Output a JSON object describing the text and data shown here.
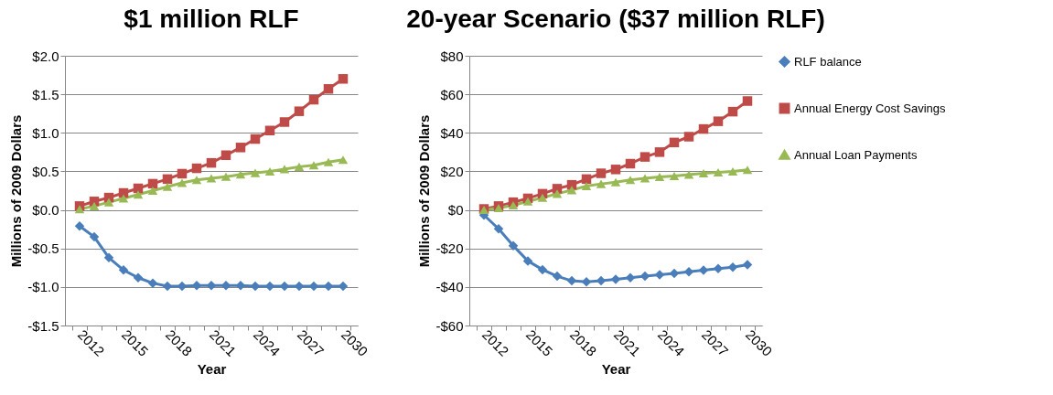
{
  "chart_data": [
    {
      "type": "line",
      "title": "$1 million RLF",
      "xlabel": "Year",
      "ylabel": "Millions of 2009 Dollars",
      "categories": [
        "2012",
        null,
        null,
        "2015",
        null,
        null,
        "2018",
        null,
        null,
        "2021",
        null,
        null,
        "2024",
        null,
        null,
        "2027",
        null,
        null,
        "2030"
      ],
      "ylim": [
        -1.5,
        2.0
      ],
      "yticks": [
        {
          "value": -1.5,
          "label": "-$1.5"
        },
        {
          "value": -1,
          "label": "-$1.0"
        },
        {
          "value": -0.5,
          "label": "-$0.5"
        },
        {
          "value": 0,
          "label": "$0.0"
        },
        {
          "value": 0.5,
          "label": "$0.5"
        },
        {
          "value": 1,
          "label": "$1.0"
        },
        {
          "value": 1.5,
          "label": "$1.5"
        },
        {
          "value": 2,
          "label": "$2.0"
        }
      ],
      "grid": "y",
      "legend": "right",
      "series": [
        {
          "name": "RLF balance",
          "color": "#4a7ebb",
          "marker": "diamond",
          "values": [
            -0.21,
            -0.35,
            -0.62,
            -0.78,
            -0.88,
            -0.95,
            -0.99,
            -0.99,
            -0.98,
            -0.98,
            -0.98,
            -0.98,
            -0.99,
            -0.99,
            -0.99,
            -0.99,
            -0.99,
            -0.99,
            -0.99
          ]
        },
        {
          "name": "Annual Energy Cost Savings",
          "color": "#be4b48",
          "marker": "square",
          "values": [
            0.05,
            0.11,
            0.16,
            0.22,
            0.28,
            0.34,
            0.4,
            0.47,
            0.54,
            0.61,
            0.71,
            0.81,
            0.92,
            1.03,
            1.14,
            1.28,
            1.43,
            1.57,
            1.7
          ]
        },
        {
          "name": "Annual Loan Payments",
          "color": "#98b954",
          "marker": "triangle",
          "values": [
            0.01,
            0.05,
            0.1,
            0.15,
            0.2,
            0.25,
            0.3,
            0.35,
            0.39,
            0.41,
            0.43,
            0.46,
            0.48,
            0.5,
            0.53,
            0.56,
            0.58,
            0.62,
            0.65
          ]
        }
      ]
    },
    {
      "type": "line",
      "title": "20-year Scenario ($37 million RLF)",
      "xlabel": "Year",
      "ylabel": "Millions of 2009 Dollars",
      "categories": [
        "2012",
        null,
        null,
        "2015",
        null,
        null,
        "2018",
        null,
        null,
        "2021",
        null,
        null,
        "2024",
        null,
        null,
        "2027",
        null,
        null,
        "2030"
      ],
      "ylim": [
        -60,
        80
      ],
      "yticks": [
        {
          "value": -60,
          "label": "-$60"
        },
        {
          "value": -40,
          "label": "-$40"
        },
        {
          "value": -20,
          "label": "-$20"
        },
        {
          "value": 0,
          "label": "$0"
        },
        {
          "value": 20,
          "label": "$20"
        },
        {
          "value": 40,
          "label": "$40"
        },
        {
          "value": 60,
          "label": "$60"
        },
        {
          "value": 80,
          "label": "$80"
        }
      ],
      "grid": "y",
      "legend": "right",
      "series": [
        {
          "name": "RLF balance",
          "color": "#4a7ebb",
          "marker": "diamond",
          "values": [
            -2.7,
            -9.8,
            -18.6,
            -26.5,
            -31,
            -34.4,
            -36.8,
            -37.3,
            -36.8,
            -36,
            -35.2,
            -34.4,
            -33.7,
            -32.9,
            -32.1,
            -31.3,
            -30.5,
            -29.7,
            -28.4
          ]
        },
        {
          "name": "Annual Energy Cost Savings",
          "color": "#be4b48",
          "marker": "square",
          "values": [
            0.5,
            2,
            4,
            6,
            8.4,
            11,
            13,
            16,
            19,
            21,
            24,
            27.5,
            30,
            35,
            38,
            42,
            46,
            51,
            56.5
          ]
        },
        {
          "name": "Annual Loan Payments",
          "color": "#98b954",
          "marker": "triangle",
          "values": [
            0,
            1,
            2.4,
            4.4,
            6.3,
            8.4,
            10.3,
            12.4,
            13.5,
            14.4,
            15.6,
            16.4,
            17.1,
            17.6,
            18.3,
            19,
            19.5,
            20,
            20.8
          ]
        }
      ]
    }
  ]
}
